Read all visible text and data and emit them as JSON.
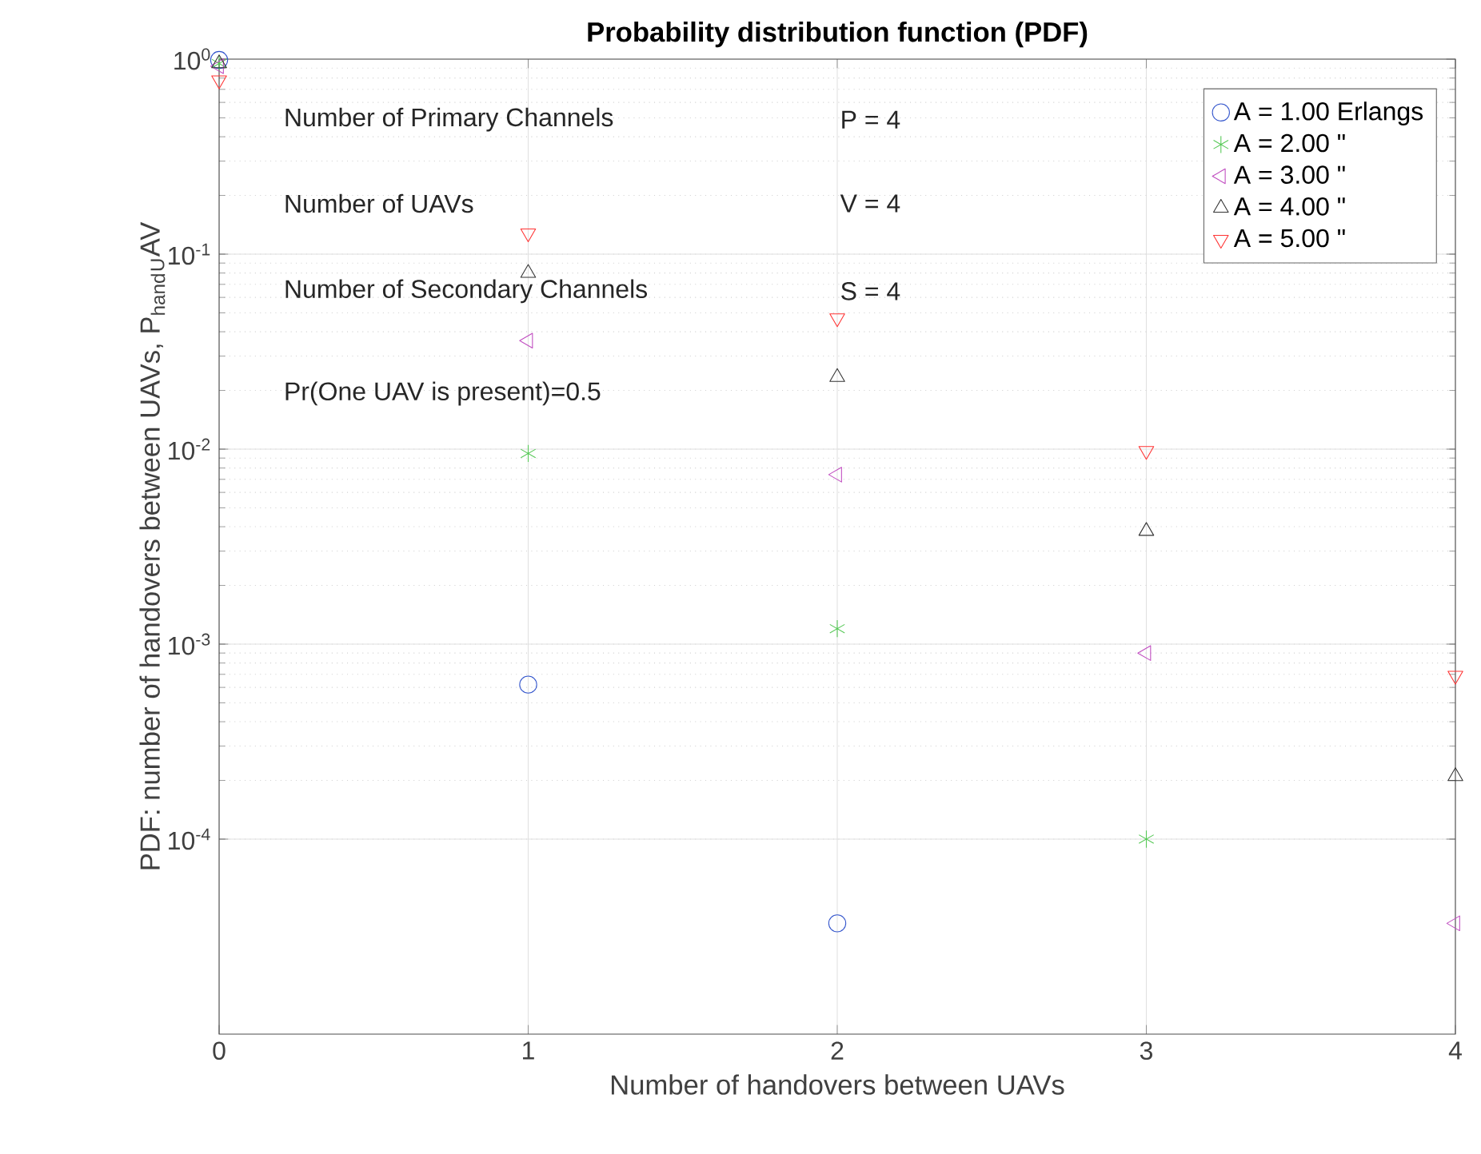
{
  "chart_data": {
    "type": "scatter",
    "title": "Probability distribution function (PDF)",
    "xlabel": "Number of handovers between UAVs",
    "ylabel": "PDF: number of handovers between UAVs, P$_{hand}$$_{U}$AV",
    "x": [
      0,
      1,
      2,
      3,
      4
    ],
    "series": [
      {
        "name": "A =  1.00 Erlangs",
        "color": "#3355cc",
        "marker": "circle",
        "values": [
          0.99,
          0.00062,
          3.7e-05,
          null,
          null
        ]
      },
      {
        "name": "A =  2.00     \"",
        "color": "#55c855",
        "marker": "cross",
        "values": [
          0.95,
          0.0095,
          0.0012,
          0.0001,
          null
        ]
      },
      {
        "name": "A =  3.00     \"",
        "color": "#c04cc0",
        "marker": "triangle-left",
        "values": [
          0.92,
          0.036,
          0.0074,
          0.0009,
          3.7e-05
        ]
      },
      {
        "name": "A =  4.00     \"",
        "color": "#333333",
        "marker": "triangle",
        "values": [
          0.95,
          0.08,
          0.0234,
          0.0038,
          0.00021
        ]
      },
      {
        "name": "A =  5.00     \"",
        "color": "#ff3333",
        "marker": "triangle-down",
        "values": [
          0.78,
          0.128,
          0.047,
          0.0098,
          0.00069
        ]
      }
    ],
    "annotations": [
      "Number of Primary Channels",
      "P = 4",
      "Number of UAVs",
      "V = 4",
      "Number of Secondary Channels",
      "S = 4",
      "Pr(One UAV is present)=0.5"
    ],
    "xlim": [
      0,
      4
    ],
    "xticks": [
      0,
      1,
      2,
      3,
      4
    ],
    "ylim": [
      1e-05,
      1
    ],
    "yticks": [
      {
        "value": 0.0001,
        "label": "10$^{-4}$"
      },
      {
        "value": 0.001,
        "label": "10$^{-3}$"
      },
      {
        "value": 0.01,
        "label": "10$^{-2}$"
      },
      {
        "value": 0.1,
        "label": "10$^{-1}$"
      },
      {
        "value": 1,
        "label": "10$^{0}$"
      }
    ],
    "log": "y",
    "grid": true,
    "legend": "top right"
  }
}
